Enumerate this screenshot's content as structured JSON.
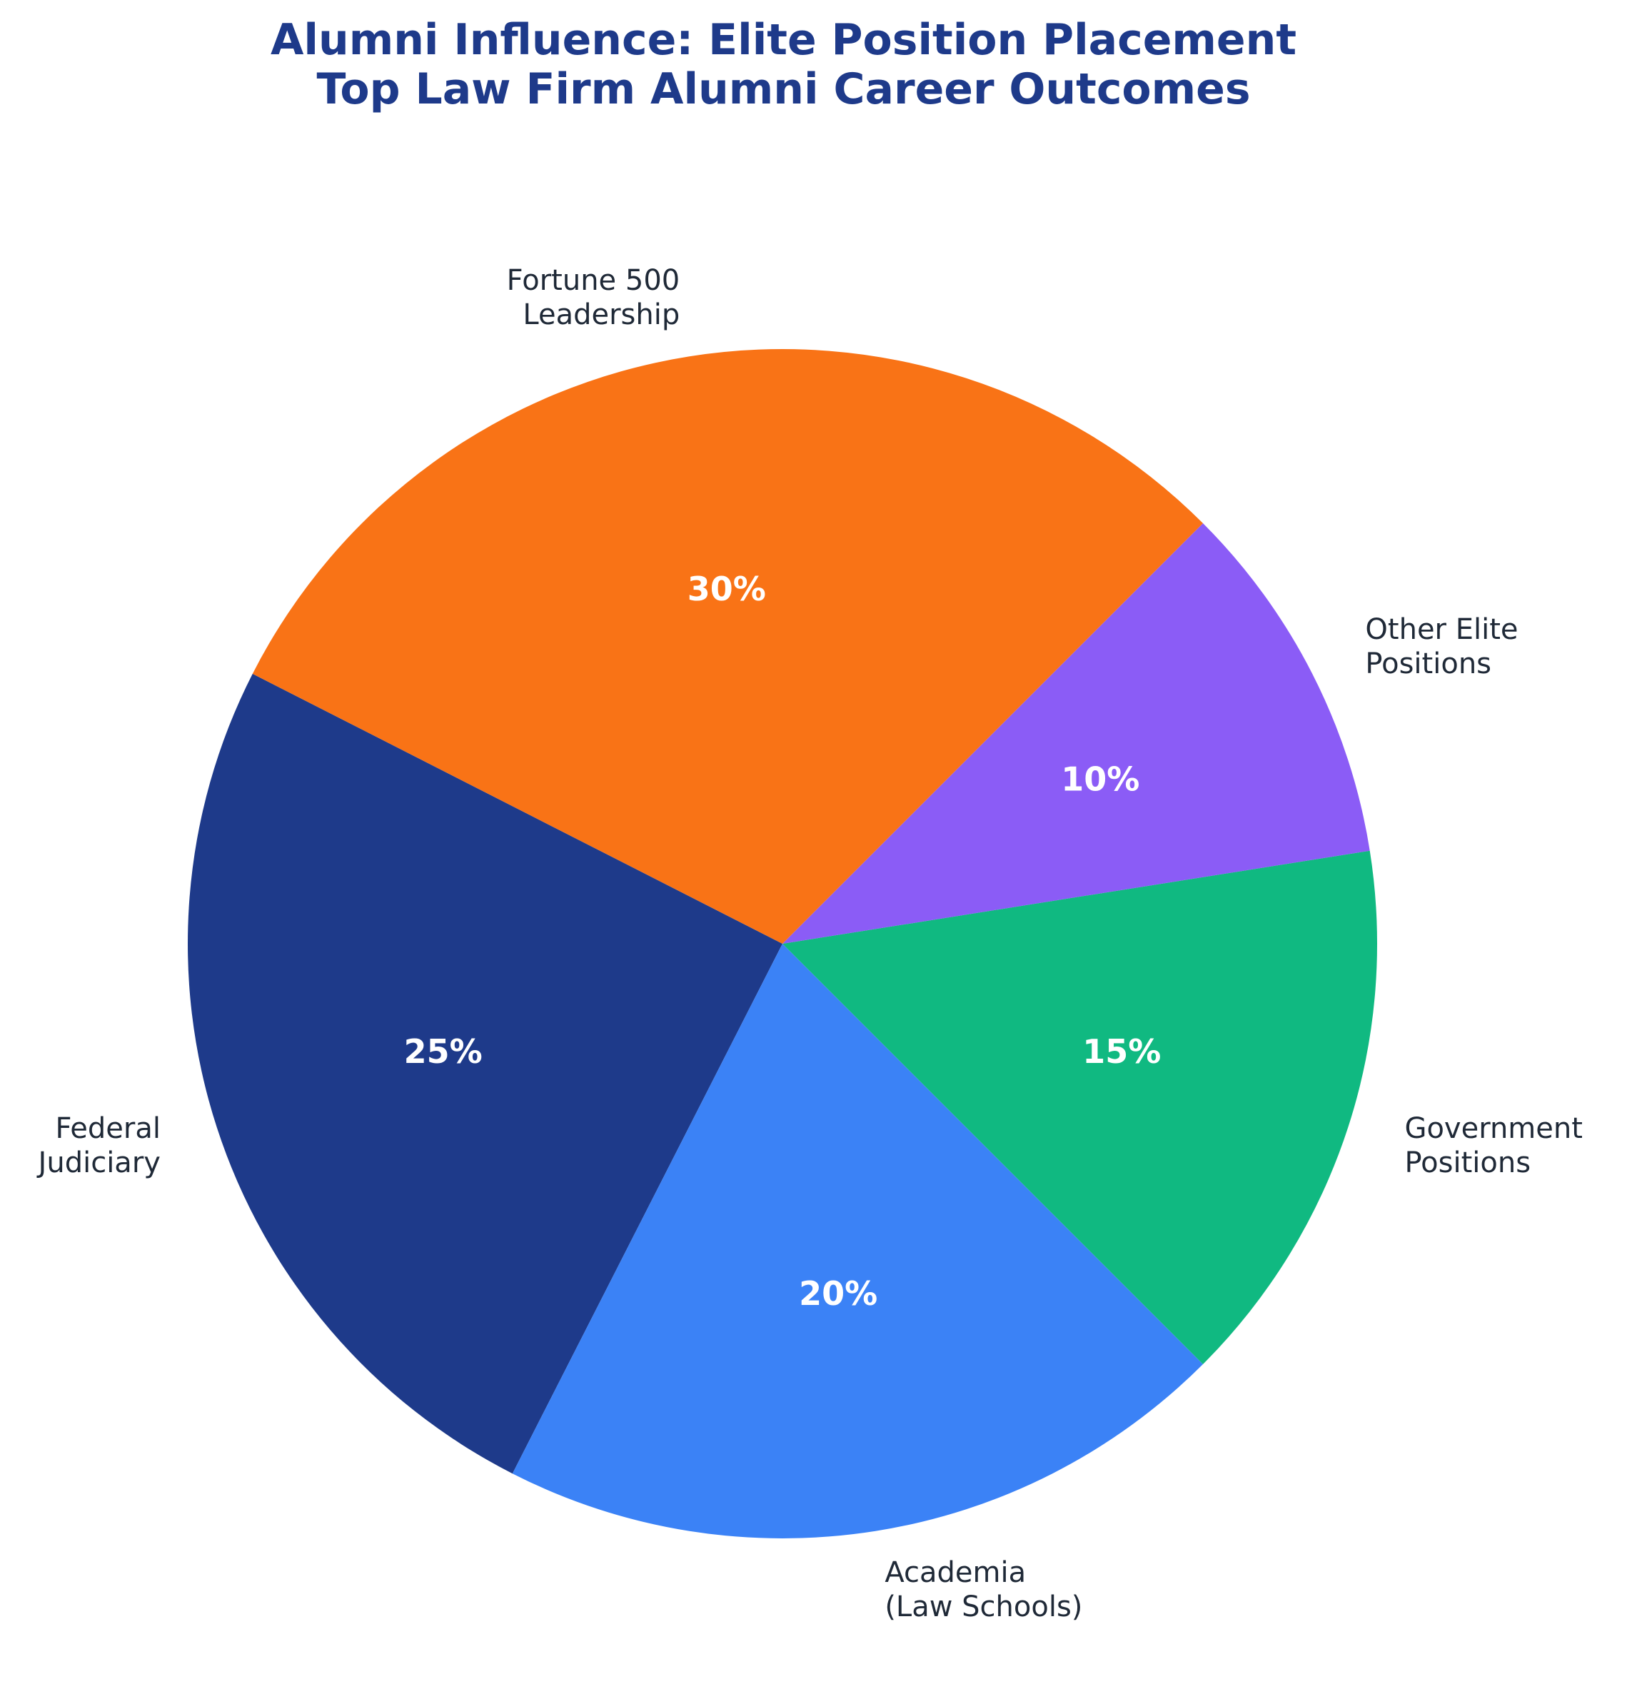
{
  "chart_data": {
    "type": "pie",
    "title": "Alumni Influence: Elite Position Placement\nTop Law Firm Alumni Career Outcomes",
    "categories": [
      "Federal\nJudiciary",
      "Academia\n(Law Schools)",
      "Government\nPositions",
      "Other Elite\nPositions",
      "Fortune 500\nLeadership"
    ],
    "values": [
      25,
      20,
      15,
      10,
      30
    ],
    "value_labels": [
      "25%",
      "20%",
      "15%",
      "10%",
      "30%"
    ],
    "colors": [
      "#1e3a8a",
      "#3b82f6",
      "#10b981",
      "#8b5cf6",
      "#f97316"
    ],
    "start_angle": 153
  }
}
